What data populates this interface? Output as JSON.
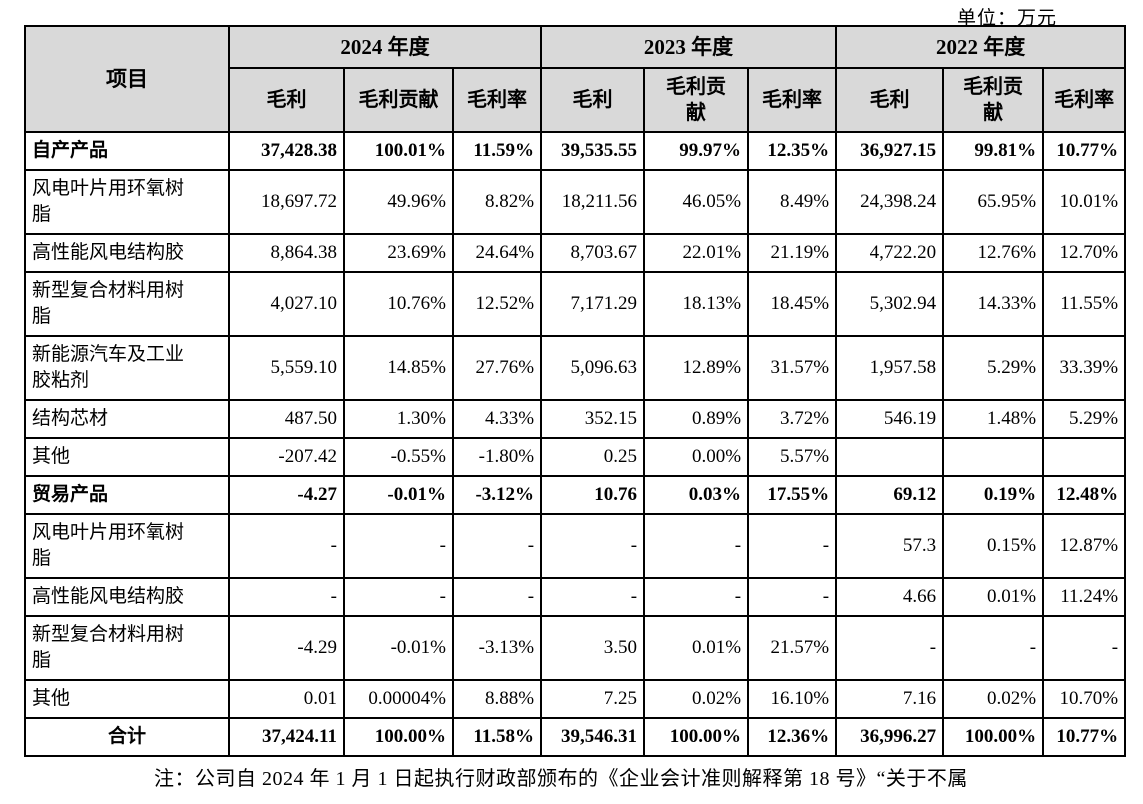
{
  "unit_label": "单位：万元",
  "note": "注：公司自 2024 年 1 月 1 日起执行财政部颁布的《企业会计准则解释第 18 号》“关于不属",
  "colors": {
    "header_bg": "#d9d9d9",
    "border": "#000000",
    "text": "#000000"
  },
  "table": {
    "item_header": "项目",
    "year_groups": [
      {
        "label": "2024 年度",
        "subcols": [
          "毛利",
          "毛利贡献",
          "毛利率"
        ]
      },
      {
        "label": "2023 年度",
        "subcols": [
          "毛利",
          "毛利贡\n献",
          "毛利率"
        ]
      },
      {
        "label": "2022 年度",
        "subcols": [
          "毛利",
          "毛利贡\n献",
          "毛利率"
        ]
      }
    ],
    "rows": [
      {
        "label": "自产产品",
        "bold": true,
        "label_align": "left",
        "values": [
          "37,428.38",
          "100.01%",
          "11.59%",
          "39,535.55",
          "99.97%",
          "12.35%",
          "36,927.15",
          "99.81%",
          "10.77%"
        ]
      },
      {
        "label": "风电叶片用环氧树\n脂",
        "bold": false,
        "label_align": "left",
        "values": [
          "18,697.72",
          "49.96%",
          "8.82%",
          "18,211.56",
          "46.05%",
          "8.49%",
          "24,398.24",
          "65.95%",
          "10.01%"
        ]
      },
      {
        "label": "高性能风电结构胶",
        "bold": false,
        "label_align": "left",
        "values": [
          "8,864.38",
          "23.69%",
          "24.64%",
          "8,703.67",
          "22.01%",
          "21.19%",
          "4,722.20",
          "12.76%",
          "12.70%"
        ]
      },
      {
        "label": "新型复合材料用树\n脂",
        "bold": false,
        "label_align": "left",
        "values": [
          "4,027.10",
          "10.76%",
          "12.52%",
          "7,171.29",
          "18.13%",
          "18.45%",
          "5,302.94",
          "14.33%",
          "11.55%"
        ]
      },
      {
        "label": "新能源汽车及工业\n胶粘剂",
        "bold": false,
        "label_align": "left",
        "values": [
          "5,559.10",
          "14.85%",
          "27.76%",
          "5,096.63",
          "12.89%",
          "31.57%",
          "1,957.58",
          "5.29%",
          "33.39%"
        ]
      },
      {
        "label": "结构芯材",
        "bold": false,
        "label_align": "left",
        "values": [
          "487.50",
          "1.30%",
          "4.33%",
          "352.15",
          "0.89%",
          "3.72%",
          "546.19",
          "1.48%",
          "5.29%"
        ]
      },
      {
        "label": "其他",
        "bold": false,
        "label_align": "left",
        "values": [
          "-207.42",
          "-0.55%",
          "-1.80%",
          "0.25",
          "0.00%",
          "5.57%",
          "",
          "",
          ""
        ]
      },
      {
        "label": "贸易产品",
        "bold": true,
        "label_align": "left",
        "values": [
          "-4.27",
          "-0.01%",
          "-3.12%",
          "10.76",
          "0.03%",
          "17.55%",
          "69.12",
          "0.19%",
          "12.48%"
        ]
      },
      {
        "label": "风电叶片用环氧树\n脂",
        "bold": false,
        "label_align": "left",
        "values": [
          "-",
          "-",
          "-",
          "-",
          "-",
          "-",
          "57.3",
          "0.15%",
          "12.87%"
        ]
      },
      {
        "label": "高性能风电结构胶",
        "bold": false,
        "label_align": "left",
        "values": [
          "-",
          "-",
          "-",
          "-",
          "-",
          "-",
          "4.66",
          "0.01%",
          "11.24%"
        ]
      },
      {
        "label": "新型复合材料用树\n脂",
        "bold": false,
        "label_align": "left",
        "values": [
          "-4.29",
          "-0.01%",
          "-3.13%",
          "3.50",
          "0.01%",
          "21.57%",
          "-",
          "-",
          "-"
        ]
      },
      {
        "label": "其他",
        "bold": false,
        "label_align": "left",
        "values": [
          "0.01",
          "0.00004%",
          "8.88%",
          "7.25",
          "0.02%",
          "16.10%",
          "7.16",
          "0.02%",
          "10.70%"
        ]
      },
      {
        "label": "合计",
        "bold": true,
        "label_align": "center",
        "values": [
          "37,424.11",
          "100.00%",
          "11.58%",
          "39,546.31",
          "100.00%",
          "12.36%",
          "36,996.27",
          "100.00%",
          "10.77%"
        ]
      }
    ]
  }
}
